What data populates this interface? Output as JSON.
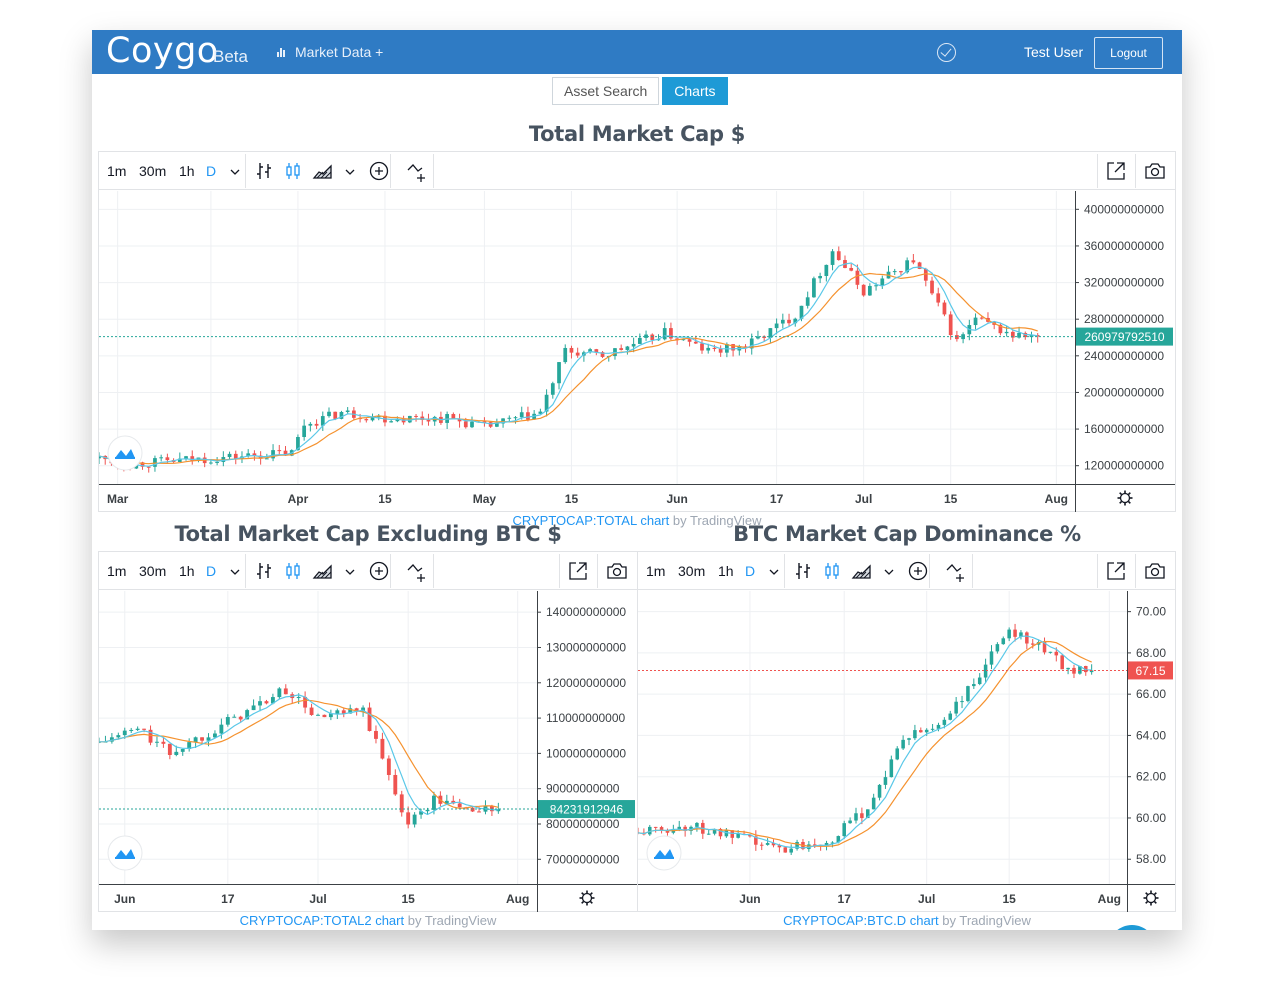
{
  "navbar": {
    "brand": "Coygo",
    "beta": "Beta",
    "market_data": "Market Data +",
    "user": "Test User",
    "logout": "Logout"
  },
  "tabs": [
    {
      "label": "Asset Search",
      "active": false
    },
    {
      "label": "Charts",
      "active": true
    }
  ],
  "toolbar": {
    "timeframes": [
      "1m",
      "30m",
      "1h",
      "D"
    ],
    "selected_timeframe": "D"
  },
  "colors": {
    "navbar": "#2f7bc4",
    "up": "#26a69a",
    "down": "#ef5350",
    "ma_fast": "#5ac8e8",
    "ma_slow": "#f5922f",
    "accent": "#1e9ad6"
  },
  "charts": [
    {
      "title": "Total Market Cap $",
      "symbol": "CRYPTOCAP:TOTAL chart",
      "by": "by TradingView",
      "last_price": "260979792510",
      "last_color": "#26a69a",
      "price_labels": [
        "400000000000",
        "360000000000",
        "320000000000",
        "280000000000",
        "240000000000",
        "200000000000",
        "160000000000",
        "120000000000"
      ],
      "time_labels": [
        "Mar",
        "18",
        "Apr",
        "15",
        "May",
        "15",
        "Jun",
        "17",
        "Jul",
        "15",
        "Aug"
      ]
    },
    {
      "title": "Total Market Cap Excluding BTC $",
      "symbol": "CRYPTOCAP:TOTAL2 chart",
      "by": "by TradingView",
      "last_price": "84231912946",
      "last_color": "#26a69a",
      "price_labels": [
        "140000000000",
        "130000000000",
        "120000000000",
        "110000000000",
        "100000000000",
        "90000000000",
        "80000000000",
        "70000000000"
      ],
      "time_labels": [
        "Jun",
        "17",
        "Jul",
        "15",
        "Aug"
      ]
    },
    {
      "title": "BTC Market Cap Dominance %",
      "symbol": "CRYPTOCAP:BTC.D chart",
      "by": "by TradingView",
      "last_price": "67.15",
      "last_color": "#ef5350",
      "price_labels": [
        "70.00",
        "68.00",
        "66.00",
        "64.00",
        "62.00",
        "60.00",
        "58.00"
      ],
      "time_labels": [
        "Jun",
        "17",
        "Jul",
        "15",
        "Aug"
      ]
    }
  ],
  "chart_data": [
    {
      "type": "candlestick",
      "title": "Total Market Cap $",
      "x_ticks": [
        "Mar",
        "18",
        "Apr",
        "15",
        "May",
        "15",
        "Jun",
        "17",
        "Jul",
        "15",
        "Aug"
      ],
      "ylim": [
        100000000000,
        420000000000
      ],
      "anchors": [
        {
          "x": "Feb 28",
          "y": 128000000000
        },
        {
          "x": "Mar 5",
          "y": 122000000000
        },
        {
          "x": "Mar 18",
          "y": 128000000000
        },
        {
          "x": "Mar 31",
          "y": 134000000000
        },
        {
          "x": "Apr 2",
          "y": 165000000000
        },
        {
          "x": "Apr 8",
          "y": 178000000000
        },
        {
          "x": "Apr 15",
          "y": 172000000000
        },
        {
          "x": "Apr 25",
          "y": 172000000000
        },
        {
          "x": "May 1",
          "y": 162000000000
        },
        {
          "x": "May 10",
          "y": 178000000000
        },
        {
          "x": "May 14",
          "y": 245000000000
        },
        {
          "x": "May 20",
          "y": 240000000000
        },
        {
          "x": "May 30",
          "y": 265000000000
        },
        {
          "x": "Jun 6",
          "y": 245000000000
        },
        {
          "x": "Jun 12",
          "y": 250000000000
        },
        {
          "x": "Jun 20",
          "y": 285000000000
        },
        {
          "x": "Jun 26",
          "y": 355000000000
        },
        {
          "x": "Jul 1",
          "y": 310000000000
        },
        {
          "x": "Jul 9",
          "y": 345000000000
        },
        {
          "x": "Jul 16",
          "y": 255000000000
        },
        {
          "x": "Jul 19",
          "y": 280000000000
        },
        {
          "x": "Jul 25",
          "y": 262000000000
        },
        {
          "x": "Jul 29",
          "y": 261000000000
        }
      ],
      "last": 260979792510
    },
    {
      "type": "candlestick",
      "title": "Total Market Cap Excluding BTC $",
      "x_ticks": [
        "Jun",
        "17",
        "Jul",
        "15",
        "Aug"
      ],
      "ylim": [
        63000000000,
        146000000000
      ],
      "anchors": [
        {
          "x": "May 28",
          "y": 103000000000
        },
        {
          "x": "Jun 3",
          "y": 107000000000
        },
        {
          "x": "Jun 8",
          "y": 100000000000
        },
        {
          "x": "Jun 14",
          "y": 106000000000
        },
        {
          "x": "Jun 20",
          "y": 112000000000
        },
        {
          "x": "Jun 26",
          "y": 118000000000
        },
        {
          "x": "Jul 1",
          "y": 110000000000
        },
        {
          "x": "Jul 8",
          "y": 112000000000
        },
        {
          "x": "Jul 15",
          "y": 80000000000
        },
        {
          "x": "Jul 19",
          "y": 87000000000
        },
        {
          "x": "Jul 25",
          "y": 84000000000
        },
        {
          "x": "Jul 29",
          "y": 84200000000
        }
      ],
      "last": 84231912946
    },
    {
      "type": "candlestick",
      "title": "BTC Market Cap Dominance %",
      "x_ticks": [
        "Jun",
        "17",
        "Jul",
        "15",
        "Aug"
      ],
      "ylim": [
        56.8,
        71.0
      ],
      "anchors": [
        {
          "x": "May 13",
          "y": 59.3
        },
        {
          "x": "May 22",
          "y": 59.6
        },
        {
          "x": "Jun 6",
          "y": 58.5
        },
        {
          "x": "Jun 15",
          "y": 59.0
        },
        {
          "x": "Jun 21",
          "y": 60.5
        },
        {
          "x": "Jun 27",
          "y": 63.8
        },
        {
          "x": "Jul 3",
          "y": 64.5
        },
        {
          "x": "Jul 9",
          "y": 66.5
        },
        {
          "x": "Jul 15",
          "y": 69.2
        },
        {
          "x": "Jul 21",
          "y": 68.2
        },
        {
          "x": "Jul 25",
          "y": 67.2
        },
        {
          "x": "Jul 29",
          "y": 67.15
        }
      ],
      "last": 67.15
    }
  ]
}
